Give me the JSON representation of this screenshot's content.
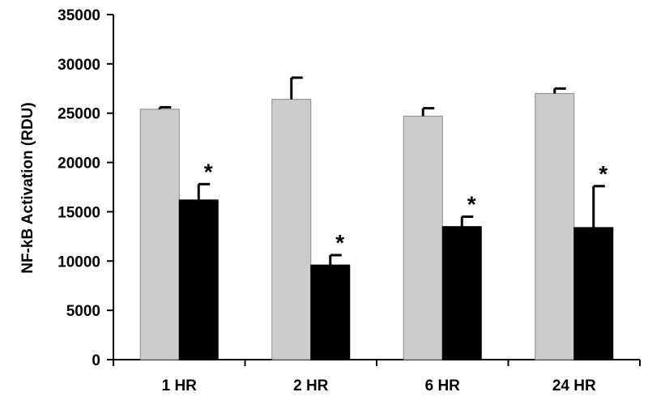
{
  "chart_data": {
    "type": "bar",
    "title": "",
    "xlabel": "",
    "ylabel": "NF-kB Activation (RDU)",
    "ylim": [
      0,
      35000
    ],
    "yticks": [
      0,
      5000,
      10000,
      15000,
      20000,
      25000,
      30000,
      35000
    ],
    "categories": [
      "1 HR",
      "2 HR",
      "6 HR",
      "24 HR"
    ],
    "series": [
      {
        "color": "#cccccc",
        "values": [
          25400,
          26400,
          24700,
          27000
        ],
        "errors": [
          200,
          2200,
          800,
          500
        ],
        "annotations": [
          "",
          "",
          "",
          ""
        ]
      },
      {
        "color": "#000000",
        "values": [
          16200,
          9600,
          13500,
          13400
        ],
        "errors": [
          1600,
          1000,
          1000,
          4200
        ],
        "annotations": [
          "*",
          "*",
          "*",
          "*"
        ]
      }
    ],
    "grid": false,
    "legend": "none"
  }
}
